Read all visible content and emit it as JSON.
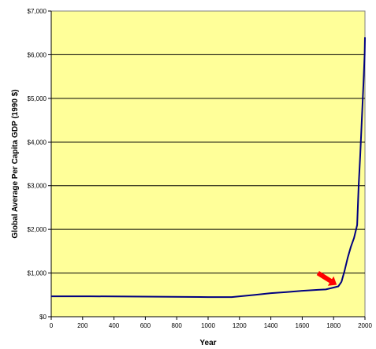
{
  "chart_data": {
    "type": "line",
    "title": "",
    "xlabel": "Year",
    "ylabel": "Global Average Per Capita GDP (1990 $)",
    "xlim": [
      0,
      2000
    ],
    "ylim": [
      0,
      7000
    ],
    "x_ticks": [
      0,
      200,
      400,
      600,
      800,
      1000,
      1200,
      1400,
      1600,
      1800,
      2000
    ],
    "x_tick_labels": [
      "0",
      "200",
      "400",
      "600",
      "800",
      "1000",
      "1200",
      "1400",
      "1600",
      "1800",
      "2000"
    ],
    "y_ticks": [
      0,
      1000,
      2000,
      3000,
      4000,
      5000,
      6000,
      7000
    ],
    "y_tick_labels": [
      "$0",
      "$1,000",
      "$2,000",
      "$3,000",
      "$4,000",
      "$5,000",
      "$6,000",
      "$7,000"
    ],
    "horizontal_grid": true,
    "series": [
      {
        "x": [
          0,
          250,
          1000,
          1150,
          1300,
          1400,
          1500,
          1600,
          1700,
          1750,
          1800,
          1830,
          1850,
          1870,
          1890,
          1910,
          1930,
          1950,
          1960,
          1970,
          1980,
          1990,
          1998,
          2000
        ],
        "y": [
          467,
          467,
          450,
          450,
          500,
          540,
          565,
          593,
          615,
          625,
          667,
          695,
          800,
          1050,
          1350,
          1600,
          1800,
          2100,
          3000,
          3700,
          4500,
          5300,
          6000,
          6400
        ],
        "color": "#000080"
      }
    ],
    "annotation": {
      "type": "arrow",
      "color": "#ff0000",
      "from": [
        1700,
        1000
      ],
      "to": [
        1820,
        730
      ]
    },
    "plot_background": "#ffff99"
  }
}
